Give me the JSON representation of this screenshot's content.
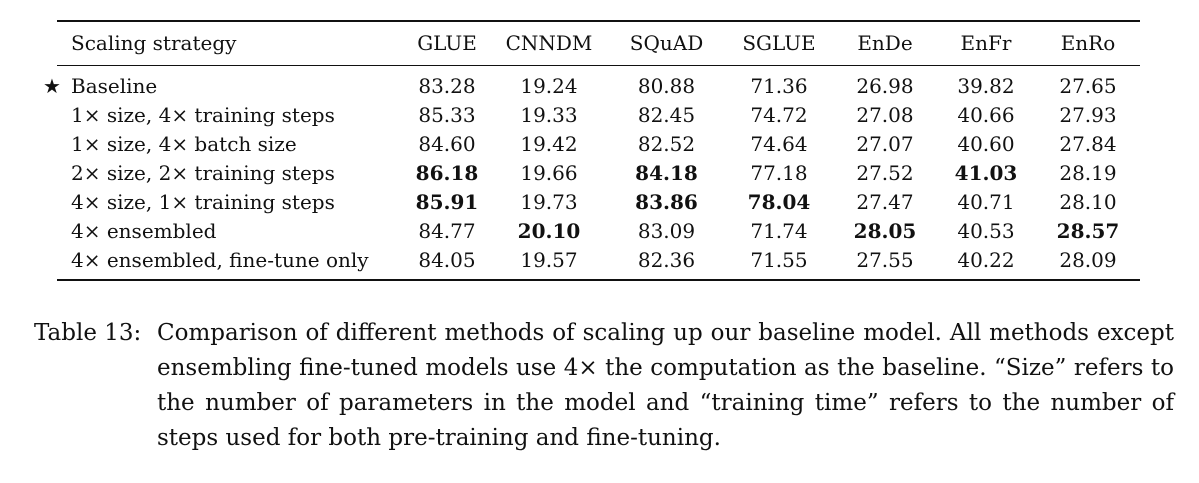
{
  "table": {
    "columns": [
      "Scaling strategy",
      "GLUE",
      "CNNDM",
      "SQuAD",
      "SGLUE",
      "EnDe",
      "EnFr",
      "EnRo"
    ],
    "rows": [
      {
        "star": "★",
        "label": "Baseline",
        "values": [
          "83.28",
          "19.24",
          "80.88",
          "71.36",
          "26.98",
          "39.82",
          "27.65"
        ],
        "bold": [
          false,
          false,
          false,
          false,
          false,
          false,
          false
        ]
      },
      {
        "star": "",
        "label": "1× size, 4× training steps",
        "values": [
          "85.33",
          "19.33",
          "82.45",
          "74.72",
          "27.08",
          "40.66",
          "27.93"
        ],
        "bold": [
          false,
          false,
          false,
          false,
          false,
          false,
          false
        ]
      },
      {
        "star": "",
        "label": "1× size, 4× batch size",
        "values": [
          "84.60",
          "19.42",
          "82.52",
          "74.64",
          "27.07",
          "40.60",
          "27.84"
        ],
        "bold": [
          false,
          false,
          false,
          false,
          false,
          false,
          false
        ]
      },
      {
        "star": "",
        "label": "2× size, 2× training steps",
        "values": [
          "86.18",
          "19.66",
          "84.18",
          "77.18",
          "27.52",
          "41.03",
          "28.19"
        ],
        "bold": [
          true,
          false,
          true,
          false,
          false,
          true,
          false
        ]
      },
      {
        "star": "",
        "label": "4× size, 1× training steps",
        "values": [
          "85.91",
          "19.73",
          "83.86",
          "78.04",
          "27.47",
          "40.71",
          "28.10"
        ],
        "bold": [
          true,
          false,
          true,
          true,
          false,
          false,
          false
        ]
      },
      {
        "star": "",
        "label": "4× ensembled",
        "values": [
          "84.77",
          "20.10",
          "83.09",
          "71.74",
          "28.05",
          "40.53",
          "28.57"
        ],
        "bold": [
          false,
          true,
          false,
          false,
          true,
          false,
          true
        ]
      },
      {
        "star": "",
        "label": "4× ensembled, fine-tune only",
        "values": [
          "84.05",
          "19.57",
          "82.36",
          "71.55",
          "27.55",
          "40.22",
          "28.09"
        ],
        "bold": [
          false,
          false,
          false,
          false,
          false,
          false,
          false
        ]
      }
    ]
  },
  "caption": {
    "label": "Table 13:",
    "text": "Comparison of different methods of scaling up our baseline model. All methods except ensembling fine-tuned models use 4× the computation as the baseline. “Size” refers to the number of parameters in the model and “training time” refers to the number of steps used for both pre-training and fine-tuning."
  }
}
